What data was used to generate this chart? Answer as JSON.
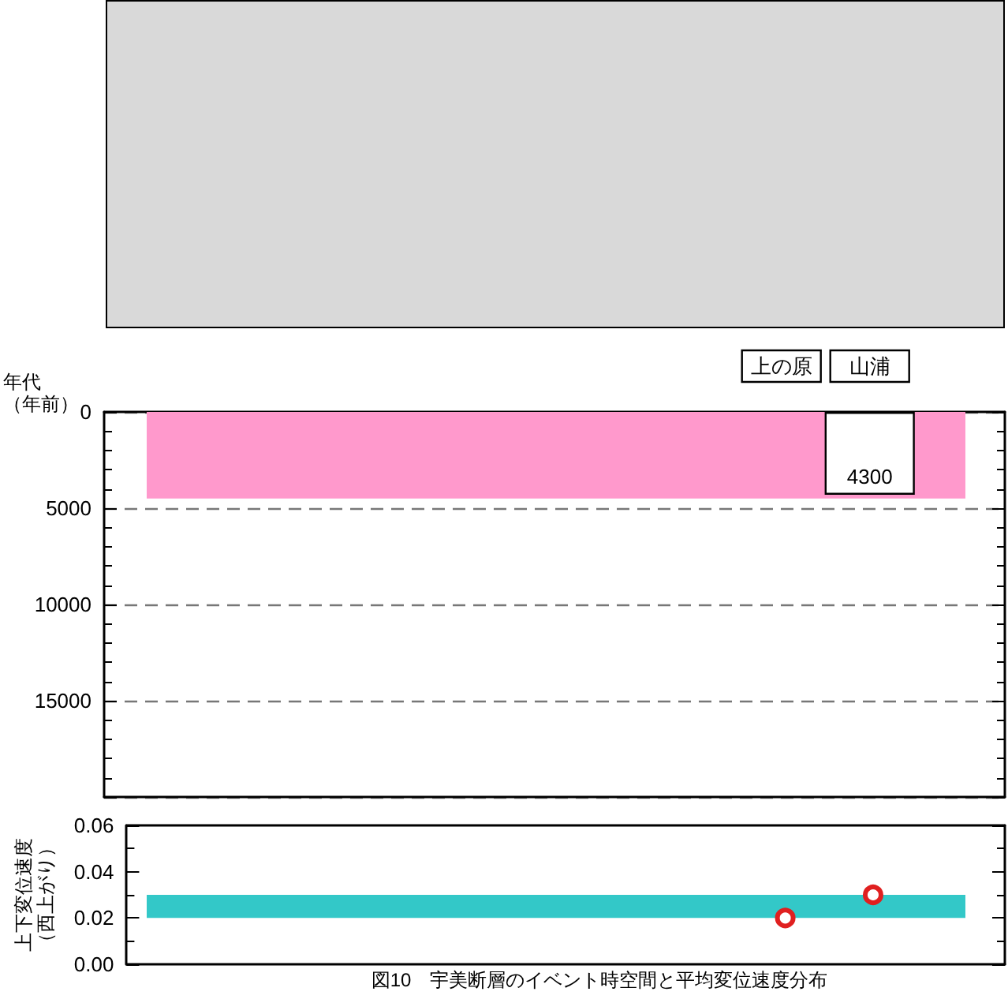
{
  "chart_data": [
    {
      "type": "bar",
      "ylabel": "年代（年前）",
      "categories": [
        null,
        null,
        null,
        null,
        null,
        null,
        null,
        null,
        null,
        null
      ],
      "values": [
        null,
        null,
        null,
        null,
        null,
        null,
        null,
        null,
        4300,
        null
      ],
      "color": "#ffffff",
      "data_labels": true,
      "ylim": [
        20000,
        0
      ],
      "yticks": [
        0,
        5000,
        10000,
        15000
      ],
      "bands": [
        {
          "axis": "y",
          "from": 0,
          "to": 4500,
          "color": "#ff99cc"
        }
      ],
      "grid": "y",
      "tick_labels": "y",
      "annotations": [
        "上の原",
        "山浦"
      ]
    },
    {
      "type": "scatter",
      "ylabel": "上下変位速度（西上がり）",
      "categories": [
        null,
        null,
        null,
        null,
        null,
        null,
        null,
        null,
        null,
        null
      ],
      "series": [
        {
          "color": "#e02020",
          "values": [
            null,
            null,
            null,
            null,
            null,
            null,
            null,
            0.02,
            0.03,
            null
          ]
        }
      ],
      "marker": "circle",
      "ylim": [
        0,
        0.06
      ],
      "yticks": [
        {
          "value": 0,
          "label": "0.00"
        },
        {
          "value": 0.02,
          "label": "0.02"
        },
        {
          "value": 0.04,
          "label": "0.04"
        },
        {
          "value": 0.06,
          "label": "0.06"
        }
      ],
      "bands": [
        {
          "axis": "y",
          "from": 0.02,
          "to": 0.03,
          "color": "#33c8c8"
        }
      ],
      "grid": false,
      "tick_labels": "y",
      "annotations": [
        "図10　宇美断層のイベント時空間と平均変位速度分布"
      ]
    }
  ]
}
